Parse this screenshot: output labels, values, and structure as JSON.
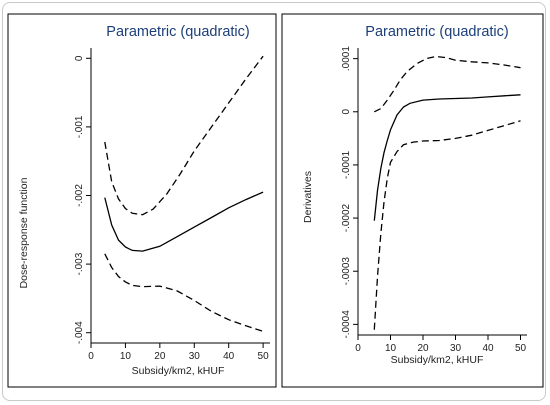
{
  "chart_data": [
    {
      "type": "line",
      "title": "Parametric (quadratic)",
      "xlabel": "Subsidy/km2, kHUF",
      "ylabel": "Dose-response function",
      "xlim": [
        0,
        52
      ],
      "ylim": [
        -0.00415,
        0.00015
      ],
      "xticks": [
        0,
        10,
        20,
        30,
        40,
        50
      ],
      "xtick_labels": [
        "0",
        "10",
        "20",
        "30",
        "40",
        "50"
      ],
      "yticks": [
        0,
        -0.001,
        -0.002,
        -0.003,
        -0.004
      ],
      "ytick_labels": [
        "0",
        "-.001",
        "-.002",
        "-.003",
        "-.004"
      ],
      "grid": false,
      "series": [
        {
          "style": "solid",
          "x": [
            4,
            6,
            8,
            10,
            12,
            15,
            20,
            25,
            30,
            35,
            40,
            45,
            50
          ],
          "y": [
            -0.00203,
            -0.00243,
            -0.00265,
            -0.00275,
            -0.0028,
            -0.00281,
            -0.00274,
            -0.0026,
            -0.00246,
            -0.00232,
            -0.00218,
            -0.00206,
            -0.00195
          ]
        },
        {
          "style": "dashed",
          "x": [
            4,
            6,
            8,
            10,
            12,
            15,
            18,
            22,
            26,
            30,
            35,
            40,
            45,
            50
          ],
          "y": [
            -0.00122,
            -0.0018,
            -0.00205,
            -0.00219,
            -0.00226,
            -0.00228,
            -0.0022,
            -0.00198,
            -0.00168,
            -0.00135,
            -0.001,
            -0.00065,
            -0.0003,
            3e-05
          ]
        },
        {
          "style": "dashed",
          "x": [
            4,
            6,
            8,
            10,
            12,
            15,
            20,
            25,
            30,
            35,
            40,
            45,
            50
          ],
          "y": [
            -0.00285,
            -0.00305,
            -0.00318,
            -0.00326,
            -0.00331,
            -0.00333,
            -0.00332,
            -0.00339,
            -0.00353,
            -0.00369,
            -0.00381,
            -0.0039,
            -0.00398
          ]
        }
      ]
    },
    {
      "type": "line",
      "title": "Parametric (quadratic)",
      "xlabel": "Subsidy/km2, kHUF",
      "ylabel": "Derivatives",
      "xlim": [
        0,
        52
      ],
      "ylim": [
        -0.00042,
        0.00012
      ],
      "xticks": [
        0,
        10,
        20,
        30,
        40,
        50
      ],
      "xtick_labels": [
        "0",
        "10",
        "20",
        "30",
        "40",
        "50"
      ],
      "yticks": [
        0.0001,
        0,
        -0.0001,
        -0.0002,
        -0.0003,
        -0.0004
      ],
      "ytick_labels": [
        ".0001",
        "0",
        "-.0001",
        "-.0002",
        "-.0003",
        "-.0004"
      ],
      "grid": false,
      "series": [
        {
          "style": "solid",
          "x": [
            5,
            6,
            7,
            8,
            9,
            10,
            12,
            14,
            16,
            20,
            25,
            30,
            35,
            40,
            45,
            50
          ],
          "y": [
            -0.000205,
            -0.000148,
            -0.000107,
            -7.7e-05,
            -5.4e-05,
            -3.4e-05,
            -6e-06,
            9e-06,
            1.6e-05,
            2.2e-05,
            2.4e-05,
            2.5e-05,
            2.6e-05,
            2.8e-05,
            3e-05,
            3.2e-05
          ]
        },
        {
          "style": "dashed",
          "x": [
            5,
            7,
            9,
            11,
            13,
            15,
            18,
            21,
            24,
            27,
            30,
            35,
            40,
            45,
            50
          ],
          "y": [
            0.0,
            6e-06,
            2.2e-05,
            4e-05,
            6e-05,
            7.5e-05,
            9e-05,
            0.0001,
            0.000104,
            0.000102,
            9.7e-05,
            9.4e-05,
            9.2e-05,
            8.8e-05,
            8.3e-05
          ]
        },
        {
          "style": "dashed",
          "x": [
            5,
            6,
            7,
            8,
            9,
            10,
            12,
            14,
            17,
            20,
            25,
            30,
            35,
            40,
            45,
            50
          ],
          "y": [
            -0.00041,
            -0.00031,
            -0.00023,
            -0.00017,
            -0.000125,
            -9.5e-05,
            -7.5e-05,
            -6.2e-05,
            -5.7e-05,
            -5.5e-05,
            -5.4e-05,
            -5e-05,
            -4.4e-05,
            -3.5e-05,
            -2.6e-05,
            -1.7e-05
          ]
        }
      ]
    }
  ]
}
